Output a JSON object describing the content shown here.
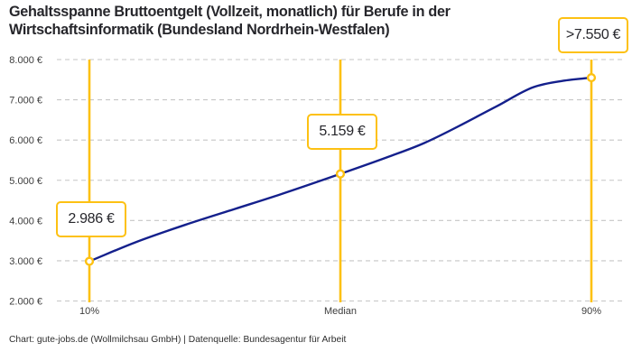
{
  "title": "Gehaltsspanne Bruttoentgelt (Vollzeit, monatlich) für Berufe in der Wirtschaftsinformatik (Bundesland Nordrhein-Westfalen)",
  "footer": "Chart: gute-jobs.de (Wollmilchsau GmbH) | Datenquelle: Bundesagentur für Arbeit",
  "colors": {
    "accent_yellow": "#FDC113",
    "line_blue": "#14208C",
    "grid_gray": "#C6C6C6",
    "text_dark": "#26262B",
    "background": "#FFFFFF"
  },
  "chart_data": {
    "type": "line",
    "title": "Gehaltsspanne Bruttoentgelt (Vollzeit, monatlich) für Berufe in der Wirtschaftsinformatik (Bundesland Nordrhein-Westfalen)",
    "xlabel": "",
    "ylabel": "",
    "grid": "horizontal dashed",
    "legend": "none",
    "x_axis": {
      "unit": "percentile",
      "range": [
        10,
        90
      ],
      "tick_positions": [
        10,
        50,
        90
      ],
      "tick_labels": [
        "10%",
        "Median",
        "90%"
      ]
    },
    "y_axis": {
      "unit": "EUR per month",
      "range": [
        2000,
        8000
      ],
      "tick_values": [
        8000,
        7000,
        6000,
        5000,
        4000,
        3000,
        2000
      ],
      "tick_labels": [
        "8.000 €",
        "7.000 €",
        "6.000 €",
        "5.000 €",
        "4.000 €",
        "3.000 €",
        "2.000 €"
      ]
    },
    "markers": [
      {
        "category": "10%",
        "percentile": 10,
        "value": 2986,
        "label": "2.986 €"
      },
      {
        "category": "Median",
        "percentile": 50,
        "value": 5159,
        "label": "5.159 €"
      },
      {
        "category": "90%",
        "percentile": 90,
        "value": 7550,
        "label": ">7.550 €"
      }
    ],
    "series": [
      {
        "name": "Bruttoentgelt",
        "samples": [
          {
            "percentile": 10.0,
            "value": 2986
          },
          {
            "percentile": 17.3,
            "value": 3456
          },
          {
            "percentile": 25.3,
            "value": 3894
          },
          {
            "percentile": 33.2,
            "value": 4288
          },
          {
            "percentile": 40.4,
            "value": 4647
          },
          {
            "percentile": 50.0,
            "value": 5159
          },
          {
            "percentile": 57.6,
            "value": 5580
          },
          {
            "percentile": 63.4,
            "value": 5928
          },
          {
            "percentile": 74.9,
            "value": 6838
          },
          {
            "percentile": 80.7,
            "value": 7310
          },
          {
            "percentile": 85.7,
            "value": 7477
          },
          {
            "percentile": 90.0,
            "value": 7550
          }
        ]
      }
    ]
  }
}
